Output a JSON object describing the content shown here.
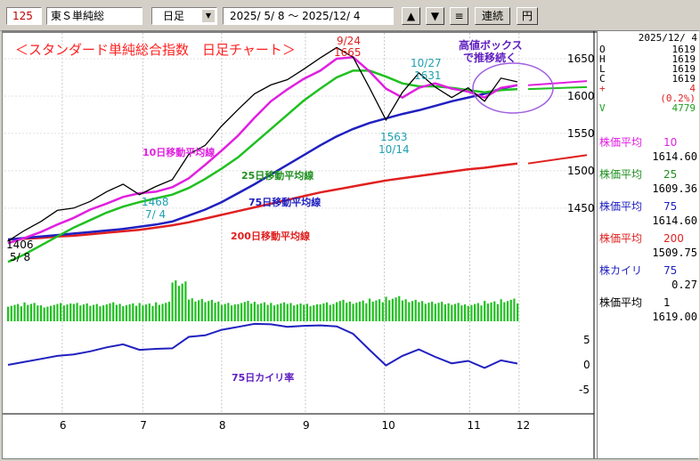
{
  "toolbar": {
    "code": "125",
    "name": "東Ｓ単純総",
    "period": "日足",
    "daterange": "2025/ 5/ 8 〜  2025/12/ 4",
    "btn_up": "▲",
    "btn_down": "▼",
    "btn_menu": "≡",
    "btn_link": "連続",
    "btn_yen": "円"
  },
  "colors": {
    "price": "#000000",
    "ma10": "#e020e0",
    "ma25": "#20c020",
    "ma75": "#2020c0",
    "ma200": "#e02020",
    "volume": "#20c020",
    "kairi": "#2020c0",
    "title": "#ff2020",
    "teal": "#20a0b0",
    "purple": "#6020c0"
  },
  "chart_data": {
    "type": "line",
    "title": "＜スタンダード単純総合指数　日足チャート＞",
    "x_ticks": [
      "6",
      "7",
      "8",
      "9",
      "10",
      "11",
      "12"
    ],
    "y_ticks": [
      "1650",
      "1600",
      "1550",
      "1500",
      "1450"
    ],
    "ylim": [
      1395,
      1675
    ],
    "kairi_ticks": [
      "5",
      "0",
      "-5"
    ],
    "kairi_lim": [
      -8,
      8
    ],
    "dates": [
      "5/8",
      "5/15",
      "5/22",
      "5/29",
      "6/5",
      "6/12",
      "6/19",
      "6/26",
      "7/3",
      "7/10",
      "7/17",
      "7/24",
      "7/31",
      "8/7",
      "8/14",
      "8/21",
      "8/28",
      "9/4",
      "9/11",
      "9/18",
      "9/24",
      "10/1",
      "10/8",
      "10/14",
      "10/21",
      "10/27",
      "11/3",
      "11/10",
      "11/17",
      "11/24",
      "12/1",
      "12/4"
    ],
    "series": [
      {
        "key": "price",
        "values": [
          1406,
          1420,
          1432,
          1447,
          1450,
          1459,
          1472,
          1482,
          1468,
          1479,
          1488,
          1522,
          1534,
          1560,
          1582,
          1603,
          1615,
          1622,
          1636,
          1651,
          1665,
          1652,
          1611,
          1568,
          1605,
          1631,
          1612,
          1598,
          1611,
          1593,
          1624,
          1619
        ]
      },
      {
        "key": "ma10",
        "values": [
          1403,
          1410,
          1418,
          1428,
          1437,
          1448,
          1456,
          1465,
          1470,
          1472,
          1478,
          1490,
          1508,
          1527,
          1547,
          1571,
          1593,
          1609,
          1623,
          1634,
          1650,
          1652,
          1633,
          1610,
          1598,
          1611,
          1617,
          1610,
          1606,
          1598,
          1611,
          1614.6
        ]
      },
      {
        "key": "ma25",
        "values": [
          1378,
          1388,
          1400,
          1412,
          1424,
          1434,
          1444,
          1452,
          1458,
          1463,
          1468,
          1477,
          1489,
          1503,
          1518,
          1537,
          1556,
          1575,
          1594,
          1610,
          1625,
          1634,
          1634,
          1626,
          1617,
          1613,
          1613,
          1611,
          1608,
          1605,
          1608,
          1609.36
        ]
      },
      {
        "key": "ma75",
        "values": [
          1408,
          1410,
          1412,
          1414,
          1416,
          1418,
          1420,
          1422,
          1425,
          1428,
          1432,
          1440,
          1448,
          1458,
          1470,
          1482,
          1495,
          1508,
          1521,
          1534,
          1546,
          1556,
          1564,
          1570,
          1576,
          1581,
          1587,
          1593,
          1598,
          1603,
          1610,
          1614.6
        ]
      },
      {
        "key": "ma200",
        "values": [
          1408,
          1409,
          1410,
          1412,
          1413,
          1415,
          1417,
          1419,
          1421,
          1424,
          1427,
          1431,
          1436,
          1441,
          1446,
          1451,
          1456,
          1461,
          1466,
          1471,
          1475,
          1479,
          1483,
          1487,
          1490,
          1493,
          1496,
          1499,
          1502,
          1504,
          1507,
          1509.75
        ]
      },
      {
        "key": "kairi",
        "values": [
          0.0,
          0.6,
          1.2,
          1.8,
          2.1,
          2.7,
          3.5,
          4.1,
          3.0,
          3.2,
          3.3,
          5.6,
          5.9,
          7.0,
          7.6,
          8.2,
          8.1,
          7.6,
          7.8,
          7.9,
          7.7,
          6.2,
          3.0,
          -0.1,
          1.8,
          3.1,
          1.6,
          0.3,
          0.8,
          -0.6,
          0.9,
          0.27
        ]
      }
    ],
    "volume_relative": [
      0.55,
      0.6,
      0.52,
      0.58,
      0.6,
      0.55,
      0.62,
      0.57,
      0.58,
      0.62,
      1.3,
      0.75,
      0.68,
      0.6,
      0.65,
      0.62,
      0.6,
      0.58,
      0.57,
      0.6,
      0.7,
      0.66,
      0.72,
      0.8,
      0.7,
      0.66,
      0.62,
      0.6,
      0.58,
      0.65,
      0.72,
      0.6
    ],
    "projections": [
      {
        "key": "ma10",
        "from": 1614.6,
        "to": 1620
      },
      {
        "key": "ma25",
        "from": 1609.36,
        "to": 1612
      },
      {
        "key": "ma200",
        "from": 1509.75,
        "to": 1521
      }
    ],
    "annotations": {
      "peak_date": "9/24",
      "peak_value": "1665",
      "date_1027": "10/27",
      "val_1027": "1631",
      "val_1563": "1563",
      "date_1014": "10/14",
      "val_1468": "1468",
      "date_74": "7/ 4",
      "val_1406": "1406",
      "date_58": "5/ 8",
      "box_text_1": "高値ボックス",
      "box_text_2": "で推移続く",
      "label_ma10": "10日移動平均線",
      "label_ma25": "25日移動平均線",
      "label_ma75": "75日移動平均線",
      "label_ma200": "200日移動平均線",
      "label_kairi": "75日カイリ率"
    }
  },
  "panel": {
    "date": "2025/12/ 4",
    "ohlc": [
      {
        "k": "O",
        "v": "1619"
      },
      {
        "k": "H",
        "v": "1619"
      },
      {
        "k": "L",
        "v": "1619"
      },
      {
        "k": "C",
        "v": "1619"
      },
      {
        "k": "+",
        "v": "4"
      },
      {
        "k": "",
        "v": "(0.2%)"
      },
      {
        "k": "V",
        "v": "4779"
      }
    ],
    "indicators": [
      {
        "label": "株価平均",
        "param": "10",
        "value": "1614.60"
      },
      {
        "label": "株価平均",
        "param": "25",
        "value": "1609.36"
      },
      {
        "label": "株価平均",
        "param": "75",
        "value": "1614.60"
      },
      {
        "label": "株価平均",
        "param": "200",
        "value": "1509.75"
      },
      {
        "label": "株カイリ",
        "param": "75",
        "value": "0.27"
      },
      {
        "label": "株価平均",
        "param": "1",
        "value": "1619.00"
      }
    ]
  }
}
